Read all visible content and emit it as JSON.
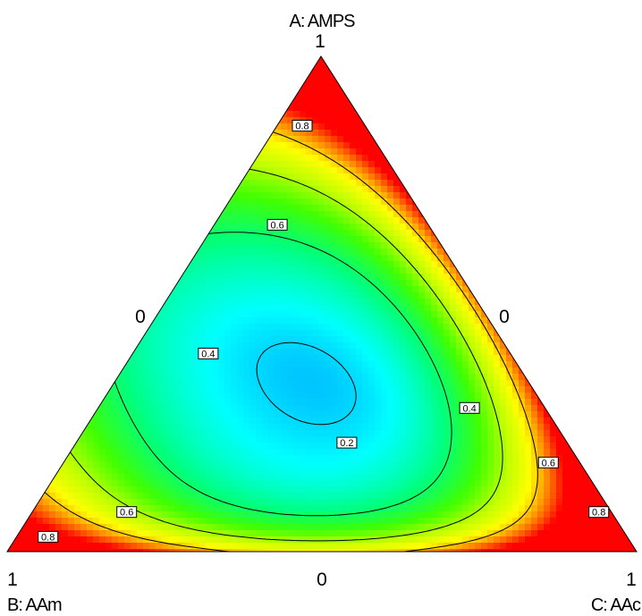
{
  "chart_data": {
    "type": "ternary-contour",
    "axes": {
      "a": {
        "title": "A: AMPS",
        "tick_max": "1",
        "tick_min": "0"
      },
      "b": {
        "title": "B: AAm",
        "tick_max": "1",
        "tick_min": "0"
      },
      "c": {
        "title": "C: AAc",
        "tick_max": "1",
        "tick_min": "0"
      }
    },
    "colorscale": [
      "#0000ff",
      "#00a0ff",
      "#00ffff",
      "#00ff80",
      "#40ff00",
      "#c0ff00",
      "#ffff00",
      "#ff8000",
      "#ff0000"
    ],
    "contour_levels": [
      0.2,
      0.4,
      0.6,
      0.8
    ],
    "contour_labels": [
      {
        "text": "0.8",
        "level": 0.8,
        "a": 0.86,
        "b": 0.1,
        "c": 0.04
      },
      {
        "text": "0.6",
        "level": 0.6,
        "a": 0.66,
        "b": 0.24,
        "c": 0.1
      },
      {
        "text": "0.4",
        "level": 0.4,
        "a": 0.4,
        "b": 0.48,
        "c": 0.12
      },
      {
        "text": "0.2",
        "level": 0.2,
        "a": 0.22,
        "b": 0.35,
        "c": 0.43
      },
      {
        "text": "0.4",
        "level": 0.4,
        "a": 0.29,
        "b": 0.12,
        "c": 0.59
      },
      {
        "text": "0.6",
        "level": 0.6,
        "a": 0.18,
        "b": 0.05,
        "c": 0.77
      },
      {
        "text": "0.8",
        "level": 0.8,
        "a": 0.08,
        "b": 0.02,
        "c": 0.9
      },
      {
        "text": "0.6",
        "level": 0.6,
        "a": 0.08,
        "b": 0.77,
        "c": 0.15
      },
      {
        "text": "0.8",
        "level": 0.8,
        "a": 0.03,
        "b": 0.92,
        "c": 0.05
      }
    ]
  }
}
